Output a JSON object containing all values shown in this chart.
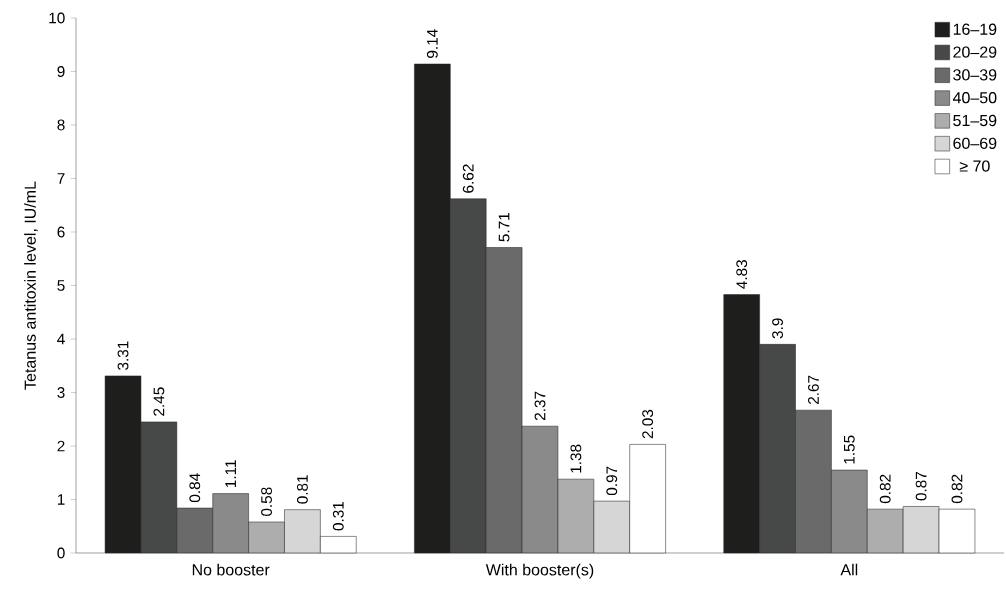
{
  "chart_data": {
    "type": "bar",
    "ylabel": "Tetanus antitoxin level, IU/mL",
    "categories": [
      "No booster",
      "With booster(s)",
      "All"
    ],
    "series": [
      {
        "name": "16–19",
        "color": "#1e1e1c",
        "values": [
          3.31,
          9.14,
          4.83
        ]
      },
      {
        "name": "20–29",
        "color": "#474948",
        "values": [
          2.45,
          6.62,
          3.9
        ]
      },
      {
        "name": "30–39",
        "color": "#6a6a6a",
        "values": [
          0.84,
          5.71,
          2.67
        ]
      },
      {
        "name": "40–50",
        "color": "#8a8a8a",
        "values": [
          1.11,
          2.37,
          1.55
        ]
      },
      {
        "name": "51–59",
        "color": "#adadad",
        "values": [
          0.58,
          1.38,
          0.82
        ]
      },
      {
        "name": "60–69",
        "color": "#d6d6d6",
        "values": [
          0.81,
          0.97,
          0.87
        ]
      },
      {
        "name": "≥ 70",
        "color": "#ffffff",
        "values": [
          0.31,
          2.03,
          0.82
        ]
      }
    ],
    "ylim": [
      0,
      10
    ],
    "yticks": [
      0,
      1,
      2,
      3,
      4,
      5,
      6,
      7,
      8,
      9,
      10
    ],
    "data_labels": true,
    "legend": "top right"
  }
}
